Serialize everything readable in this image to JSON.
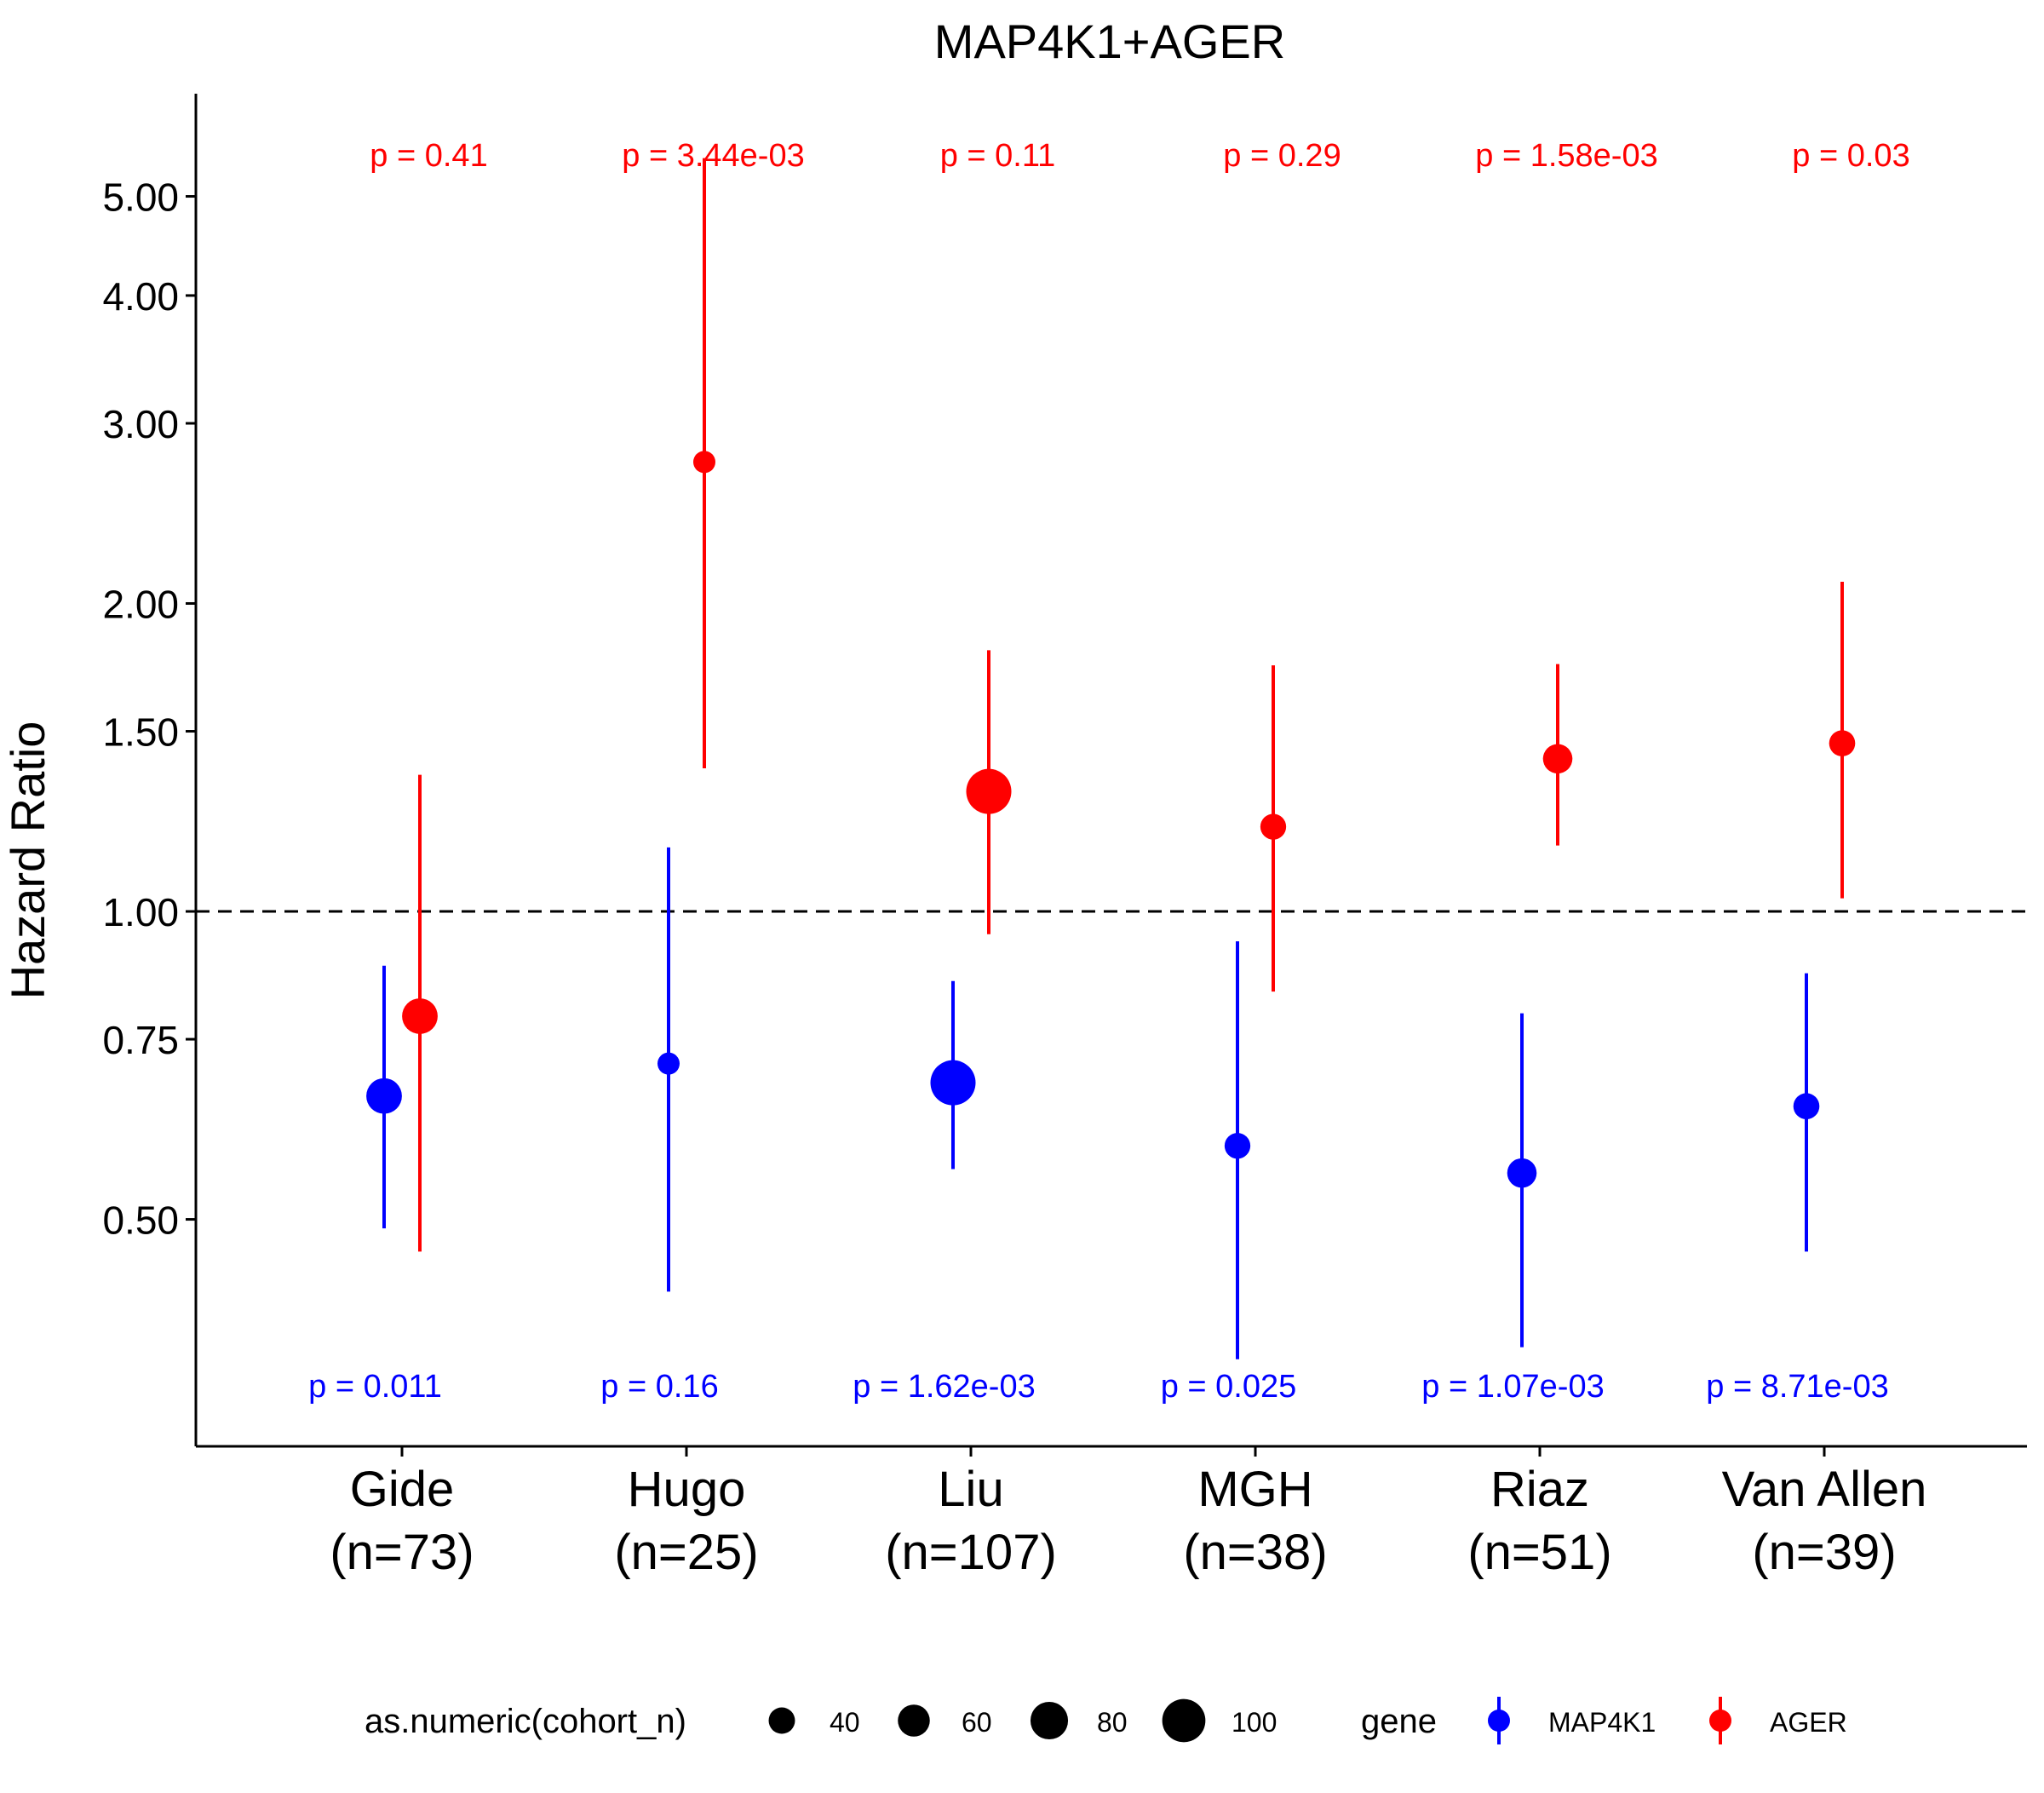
{
  "chart_data": {
    "type": "scatter",
    "subtype": "forest-plot-with-error-bars",
    "title": "MAP4K1+AGER",
    "xlabel": "",
    "ylabel": "Hazard Ratio",
    "y_scale": "log",
    "ylim": [
      0.3,
      6.3
    ],
    "y_ticks": [
      {
        "value": 0.5,
        "label": "0.50"
      },
      {
        "value": 0.75,
        "label": "0.75"
      },
      {
        "value": 1.0,
        "label": "1.00"
      },
      {
        "value": 1.5,
        "label": "1.50"
      },
      {
        "value": 2.0,
        "label": "2.00"
      },
      {
        "value": 3.0,
        "label": "3.00"
      },
      {
        "value": 4.0,
        "label": "4.00"
      },
      {
        "value": 5.0,
        "label": "5.00"
      }
    ],
    "reference_line": {
      "value": 1.0,
      "style": "dashed"
    },
    "grid": false,
    "categories": [
      {
        "name": "Gide",
        "n_label": "(n=73)",
        "n": 73
      },
      {
        "name": "Hugo",
        "n_label": "(n=25)",
        "n": 25
      },
      {
        "name": "Liu",
        "n_label": "(n=107)",
        "n": 107
      },
      {
        "name": "MGH",
        "n_label": "(n=38)",
        "n": 38
      },
      {
        "name": "Riaz",
        "n_label": "(n=51)",
        "n": 51
      },
      {
        "name": "Van Allen",
        "n_label": "(n=39)",
        "n": 39
      }
    ],
    "series": [
      {
        "name": "MAP4K1",
        "color": "#0000ff",
        "hr": [
          0.66,
          0.71,
          0.68,
          0.59,
          0.555,
          0.645
        ],
        "lower": [
          0.49,
          0.425,
          0.56,
          0.365,
          0.375,
          0.465
        ],
        "upper": [
          0.885,
          1.155,
          0.855,
          0.935,
          0.795,
          0.87
        ],
        "p_labels": [
          "p = 0.011",
          "p = 0.16",
          "p = 1.62e-03",
          "p = 0.025",
          "p = 1.07e-03",
          "p = 8.71e-03"
        ]
      },
      {
        "name": "AGER",
        "color": "#ff0000",
        "hr": [
          0.79,
          2.75,
          1.31,
          1.21,
          1.41,
          1.46
        ],
        "lower": [
          0.465,
          1.38,
          0.95,
          0.835,
          1.16,
          1.03
        ],
        "upper": [
          1.36,
          5.45,
          1.8,
          1.74,
          1.745,
          2.1
        ],
        "p_labels": [
          "p = 0.41",
          "p = 3.44e-03",
          "p = 0.11",
          "p = 0.29",
          "p = 1.58e-03",
          "p = 0.03"
        ]
      }
    ],
    "legend": {
      "placement": "bottom",
      "size_title": "as.numeric(cohort_n)",
      "size_entries": [
        {
          "value": 40,
          "label": "40"
        },
        {
          "value": 60,
          "label": "60"
        },
        {
          "value": 80,
          "label": "80"
        },
        {
          "value": 100,
          "label": "100"
        }
      ],
      "gene_title": "gene",
      "gene_entries": [
        "MAP4K1",
        "AGER"
      ]
    }
  }
}
